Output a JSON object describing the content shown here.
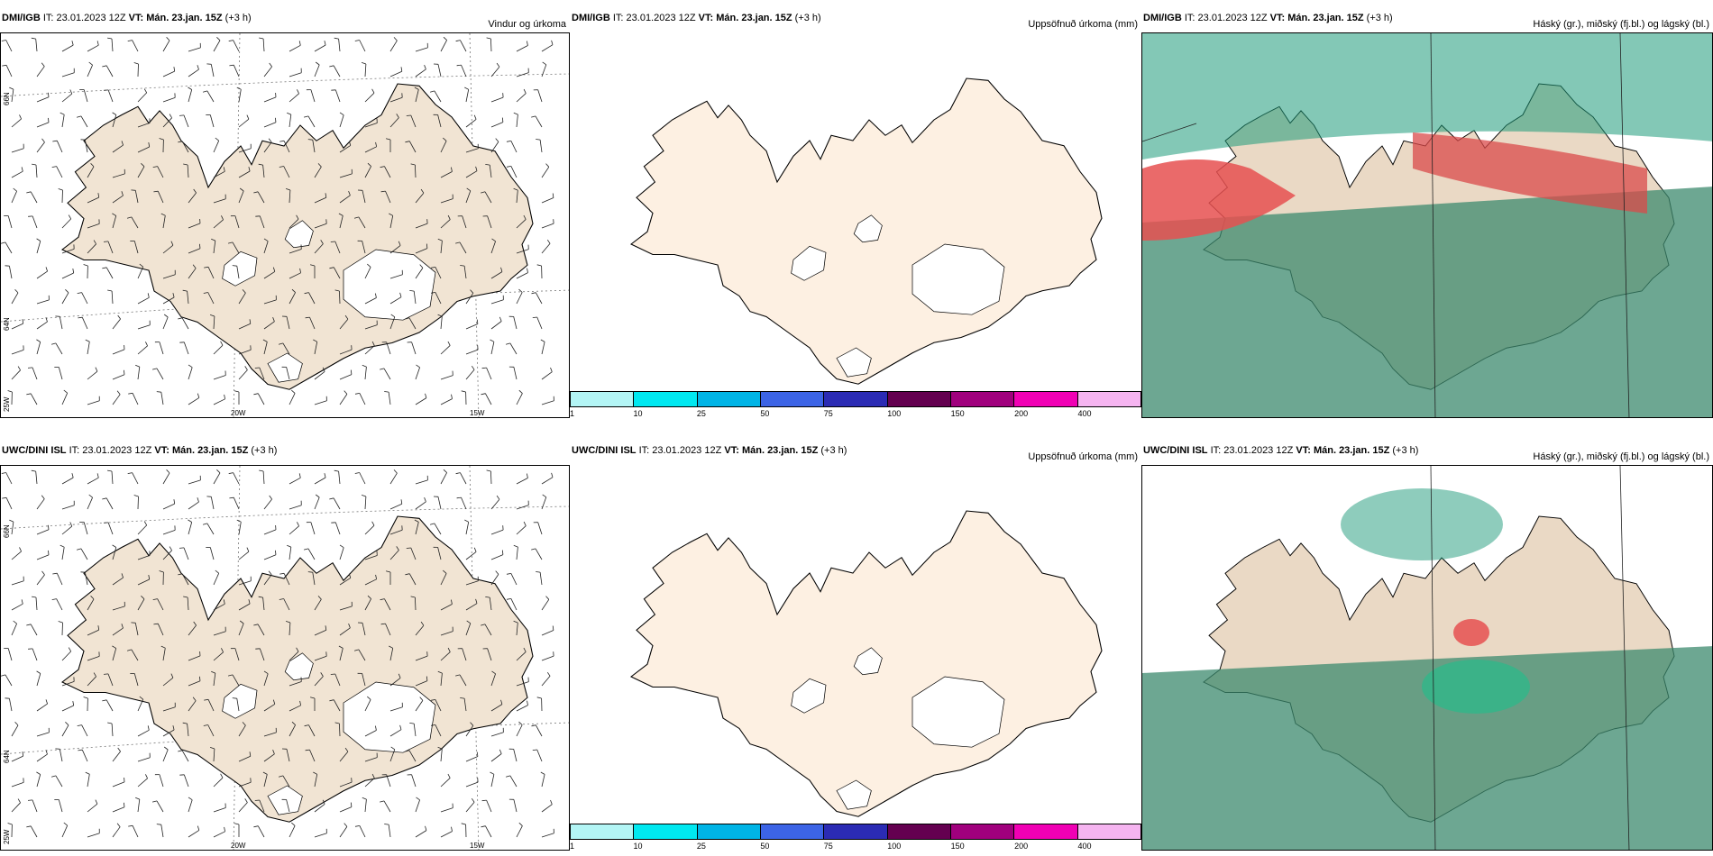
{
  "rows": [
    {
      "model": "DMI/IGB",
      "it_label": "IT:",
      "it_value": "23.01.2023 12Z",
      "vt_label": "VT:",
      "vt_value": "Mán. 23.jan. 15Z",
      "lead": "(+3 h)"
    },
    {
      "model": "UWC/DINI ISL",
      "it_label": "IT:",
      "it_value": "23.01.2023 12Z",
      "vt_label": "VT:",
      "vt_value": "Mán. 23.jan. 15Z",
      "lead": "(+3 h)"
    }
  ],
  "panel_titles": {
    "wind": "Vindur og úrkoma",
    "precip": "Uppsöfnuð úrkoma (mm)",
    "clouds": "Háský (gr.), miðský (fj.bl.) og lágský (bl.)"
  },
  "axis_labels": {
    "lon_20w": "20W",
    "lon_15w": "15W",
    "lat_66n": "66N",
    "lat_64n": "64N",
    "lon_25w": "25W"
  },
  "colorbar": {
    "labels": [
      "1",
      "10",
      "25",
      "50",
      "75",
      "100",
      "150",
      "200",
      "400"
    ],
    "colors": [
      "#b3f5f5",
      "#00e8f0",
      "#00b4e6",
      "#3c64e6",
      "#2b2bb4",
      "#640050",
      "#a0007d",
      "#f000b4",
      "#f5b4f0"
    ]
  },
  "colors": {
    "land_wind": "#f1e4d3",
    "land_precip": "#fdf0e2",
    "cloud_high": "#e65050",
    "cloud_mid": "#3c7d5a",
    "cloud_low": "#1e9a7a"
  }
}
